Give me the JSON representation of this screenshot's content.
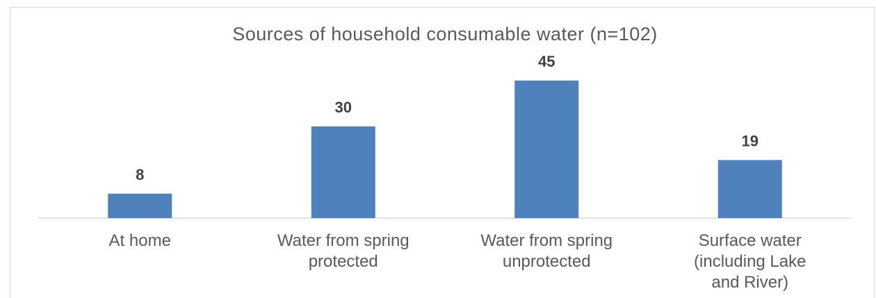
{
  "chart_data": {
    "type": "bar",
    "title": "Sources of household consumable water (n=102)",
    "categories": [
      [
        "At home"
      ],
      [
        "Water from spring",
        "protected"
      ],
      [
        "Water from spring",
        "unprotected"
      ],
      [
        "Surface water",
        "(including Lake",
        "and River)"
      ]
    ],
    "values": [
      8,
      30,
      45,
      19
    ],
    "ylim": [
      0,
      60
    ],
    "grid": false,
    "legend": "none",
    "bar_color": "#4f81bd",
    "axis_color": "#d9d9d9"
  }
}
